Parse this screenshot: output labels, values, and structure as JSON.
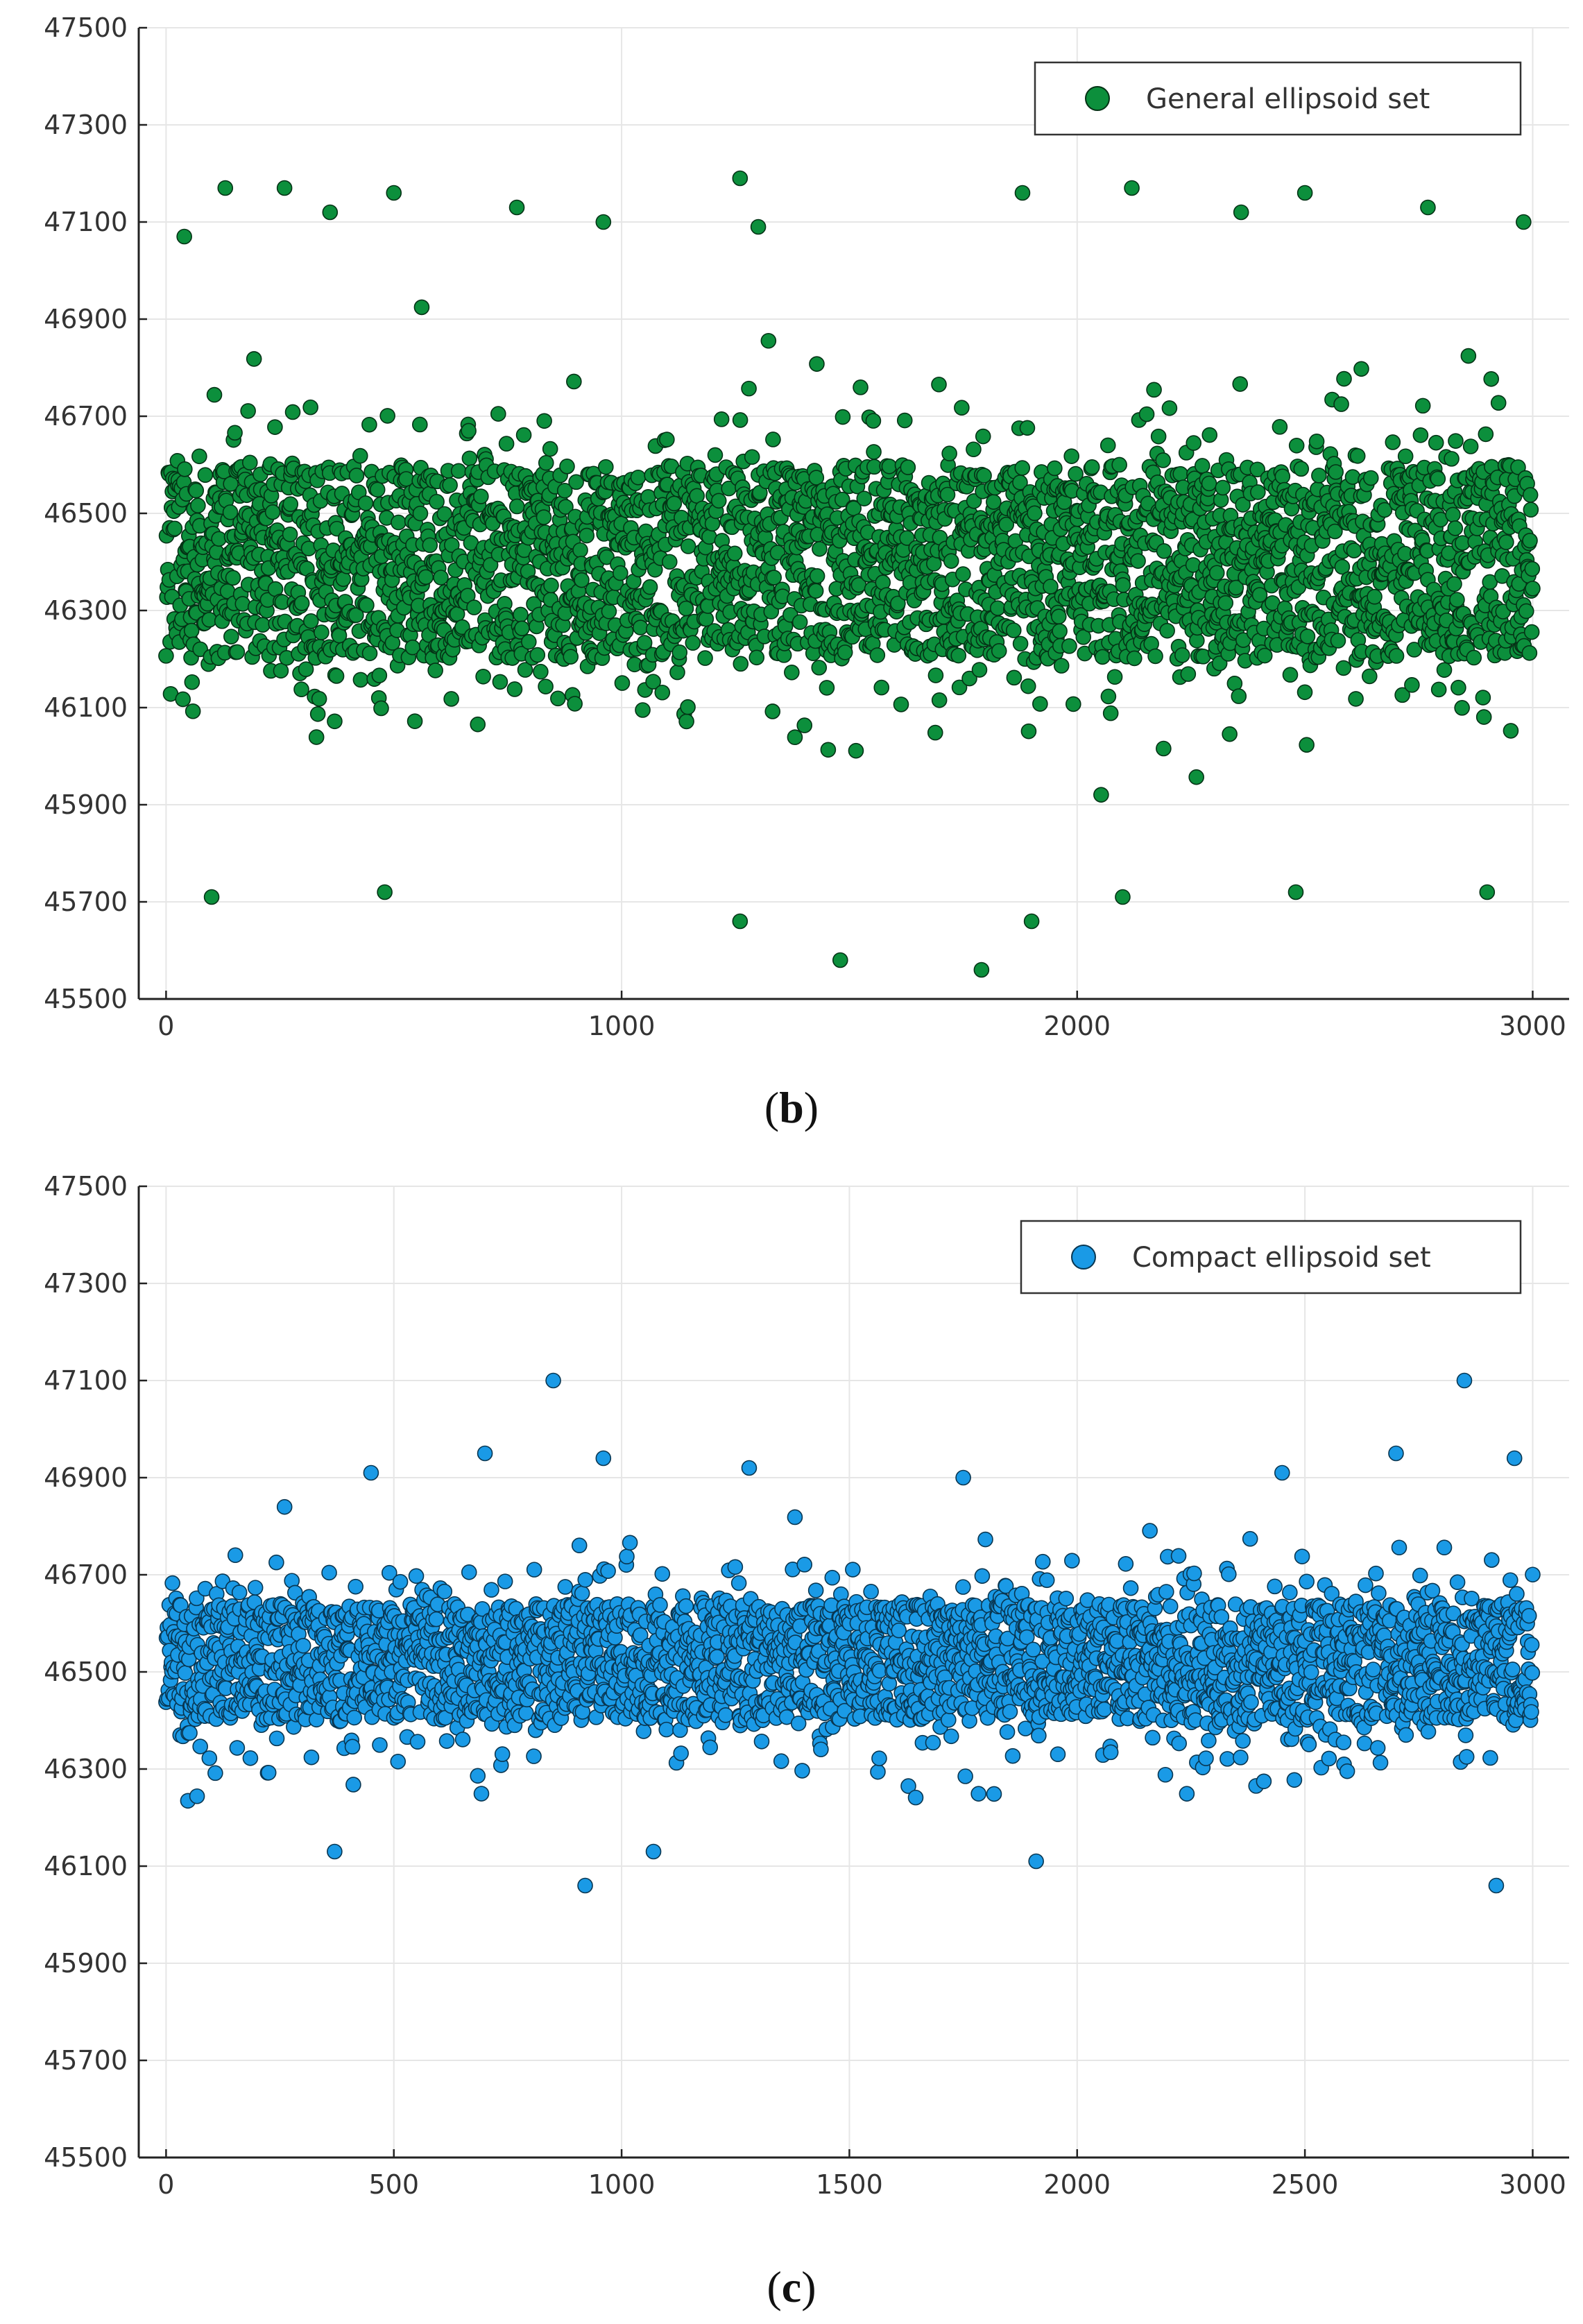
{
  "panels": [
    {
      "caption_open": "(",
      "caption_letter": "b",
      "caption_close": ")"
    },
    {
      "caption_open": "(",
      "caption_letter": "c",
      "caption_close": ")"
    }
  ],
  "chart_data": [
    {
      "type": "scatter",
      "title": "",
      "xlabel": "",
      "ylabel": "",
      "xlim": [
        -60,
        3080
      ],
      "ylim": [
        45500,
        47500
      ],
      "xticks": [
        0,
        1000,
        2000,
        3000
      ],
      "yticks": [
        45500,
        45700,
        45900,
        46100,
        46300,
        46500,
        46700,
        46900,
        47100,
        47300,
        47500
      ],
      "grid": true,
      "legend_position": "top-right",
      "series": [
        {
          "name": "General ellipsoid set",
          "color": "#0c8f3c",
          "n_points": 3000,
          "center": 46400,
          "core_half_width": 200,
          "spread_sd": 230,
          "outliers": [
            [
              100,
              45710
            ],
            [
              130,
              47170
            ],
            [
              260,
              47170
            ],
            [
              480,
              45720
            ],
            [
              500,
              47160
            ],
            [
              770,
              47130
            ],
            [
              960,
              47100
            ],
            [
              1260,
              47190
            ],
            [
              1260,
              45660
            ],
            [
              1480,
              45580
            ],
            [
              1790,
              45560
            ],
            [
              1900,
              45660
            ],
            [
              1880,
              47160
            ],
            [
              2100,
              45710
            ],
            [
              2120,
              47170
            ],
            [
              2480,
              45720
            ],
            [
              2500,
              47160
            ],
            [
              2770,
              47130
            ],
            [
              2900,
              45720
            ],
            [
              2980,
              47100
            ],
            [
              1300,
              47090
            ],
            [
              360,
              47120
            ],
            [
              2360,
              47120
            ],
            [
              40,
              47070
            ]
          ]
        }
      ]
    },
    {
      "type": "scatter",
      "title": "",
      "xlabel": "",
      "ylabel": "",
      "xlim": [
        -60,
        3080
      ],
      "ylim": [
        45500,
        47500
      ],
      "xticks": [
        0,
        500,
        1000,
        1500,
        2000,
        2500,
        3000
      ],
      "yticks": [
        45500,
        45700,
        45900,
        46100,
        46300,
        46500,
        46700,
        46900,
        47100,
        47300,
        47500
      ],
      "grid": true,
      "legend_position": "top-right",
      "series": [
        {
          "name": "Compact ellipsoid set",
          "color": "#1a9ae6",
          "n_points": 3000,
          "center": 46520,
          "core_half_width": 120,
          "spread_sd": 150,
          "outliers": [
            [
              850,
              47100
            ],
            [
              2850,
              47100
            ],
            [
              700,
              46950
            ],
            [
              960,
              46940
            ],
            [
              2700,
              46950
            ],
            [
              2960,
              46940
            ],
            [
              920,
              46060
            ],
            [
              2920,
              46060
            ],
            [
              1910,
              46110
            ],
            [
              1280,
              46920
            ],
            [
              450,
              46910
            ],
            [
              2450,
              46910
            ],
            [
              1750,
              46900
            ],
            [
              370,
              46130
            ],
            [
              1070,
              46130
            ]
          ]
        }
      ]
    }
  ]
}
